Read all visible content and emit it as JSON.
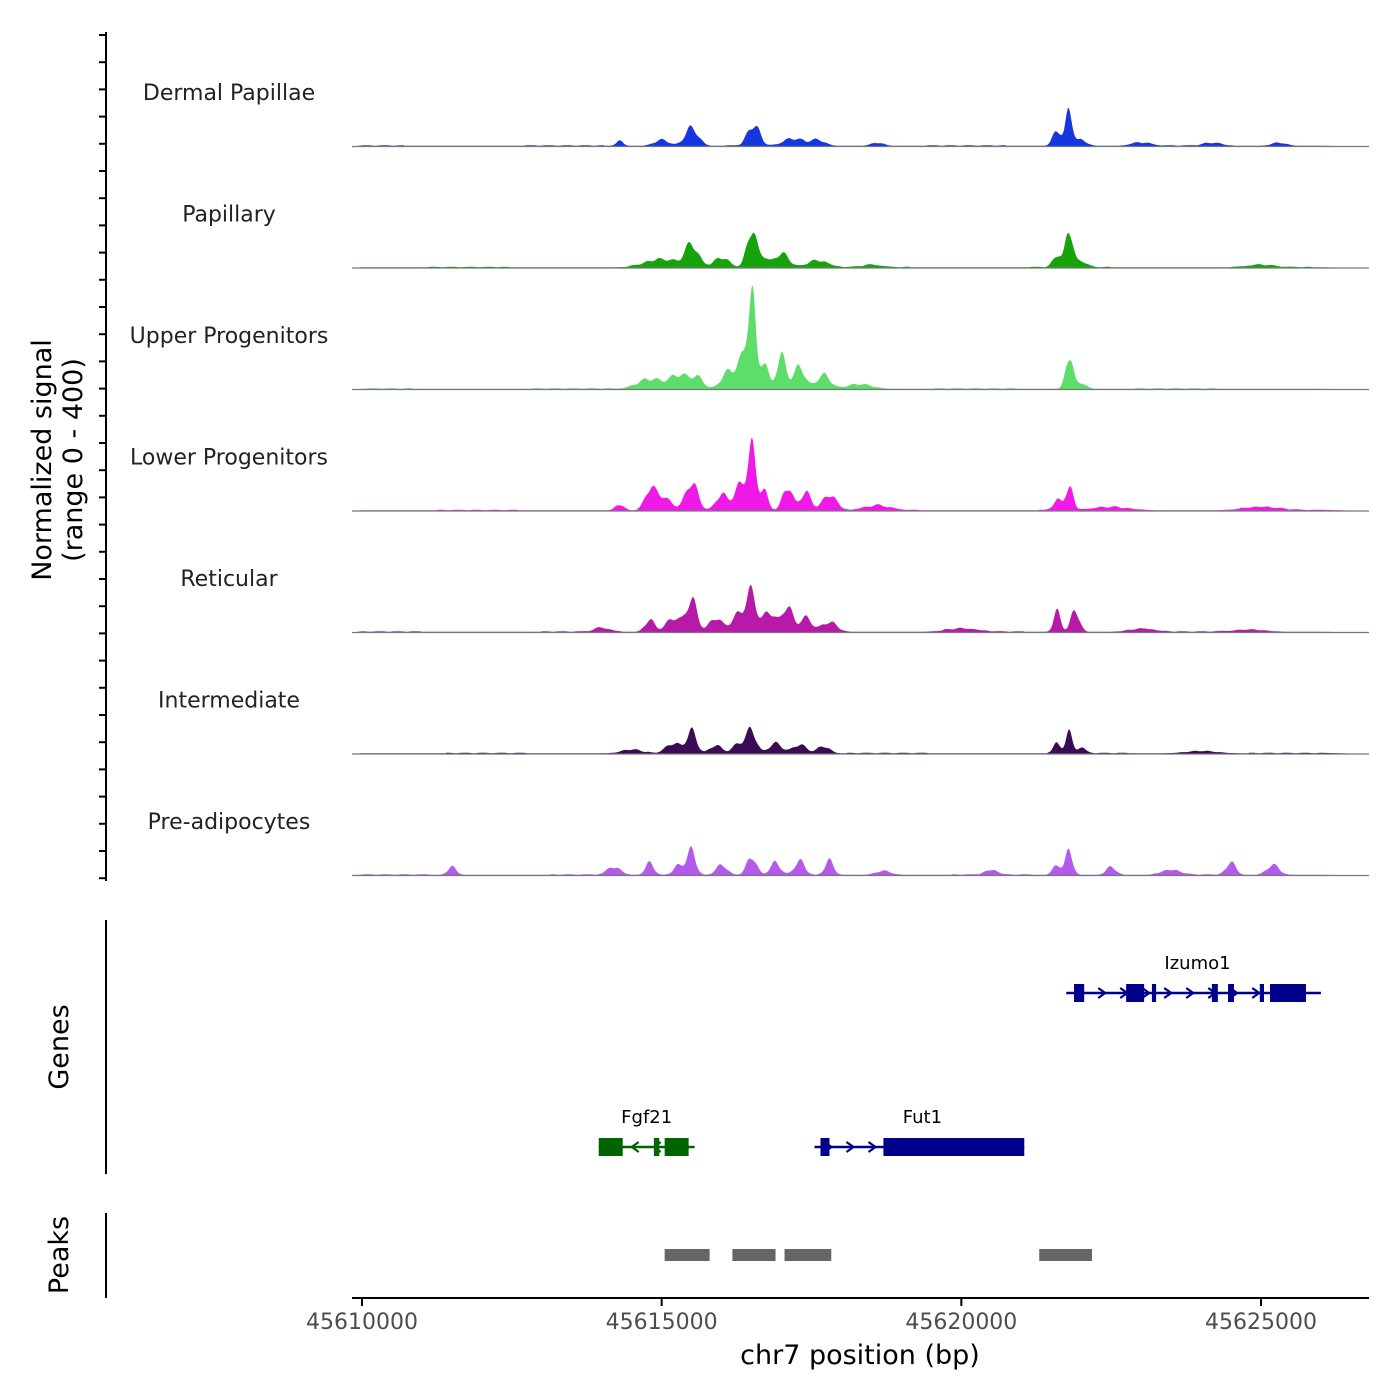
{
  "chart_data": {
    "type": "area",
    "chromosome": "chr7",
    "x_range": [
      45610000,
      45626000
    ],
    "signal_range": [
      0,
      400
    ],
    "xlabel": "chr7 position (bp)",
    "ylabel_line1": "Normalized signal",
    "ylabel_line2": "(range 0 - 400)",
    "x_ticks": [
      {
        "value": 45610000,
        "label": "45610000"
      },
      {
        "value": 45615000,
        "label": "45615000"
      },
      {
        "value": 45620000,
        "label": "45620000"
      },
      {
        "value": 45625000,
        "label": "45625000"
      }
    ],
    "tracks": [
      {
        "name": "Dermal Papillae",
        "color": "#1537e0",
        "peaks": [
          [
            45614300,
            12,
            60
          ],
          [
            45615000,
            15,
            120
          ],
          [
            45615500,
            45,
            110
          ],
          [
            45616500,
            40,
            90
          ],
          [
            45616600,
            22,
            70
          ],
          [
            45617200,
            18,
            160
          ],
          [
            45617600,
            15,
            120
          ],
          [
            45618600,
            8,
            100
          ],
          [
            45621600,
            40,
            70
          ],
          [
            45621800,
            90,
            55
          ],
          [
            45622000,
            15,
            90
          ],
          [
            45623000,
            8,
            150
          ],
          [
            45624200,
            8,
            150
          ],
          [
            45625300,
            8,
            120
          ]
        ]
      },
      {
        "name": "Papillary",
        "color": "#16a30c",
        "peaks": [
          [
            45615000,
            20,
            260
          ],
          [
            45615500,
            55,
            110
          ],
          [
            45616000,
            25,
            120
          ],
          [
            45616500,
            95,
            80
          ],
          [
            45616700,
            25,
            70
          ],
          [
            45617000,
            35,
            120
          ],
          [
            45617600,
            18,
            160
          ],
          [
            45618500,
            6,
            150
          ],
          [
            45621600,
            30,
            70
          ],
          [
            45621800,
            95,
            60
          ],
          [
            45622000,
            15,
            90
          ],
          [
            45625000,
            6,
            200
          ]
        ]
      },
      {
        "name": "Upper Progenitors",
        "color": "#5ddd6a",
        "peaks": [
          [
            45614800,
            25,
            200
          ],
          [
            45615300,
            35,
            160
          ],
          [
            45615600,
            25,
            100
          ],
          [
            45616100,
            40,
            110
          ],
          [
            45616350,
            70,
            100
          ],
          [
            45616500,
            230,
            60
          ],
          [
            45616700,
            70,
            70
          ],
          [
            45617000,
            80,
            80
          ],
          [
            45617300,
            55,
            90
          ],
          [
            45617700,
            35,
            110
          ],
          [
            45618300,
            12,
            200
          ],
          [
            45621800,
            85,
            60
          ],
          [
            45622000,
            15,
            80
          ]
        ]
      },
      {
        "name": "Lower Progenitors",
        "color": "#f01ae8",
        "peaks": [
          [
            45614300,
            15,
            70
          ],
          [
            45614800,
            45,
            80
          ],
          [
            45615000,
            35,
            140
          ],
          [
            45615500,
            70,
            100
          ],
          [
            45616000,
            40,
            90
          ],
          [
            45616300,
            60,
            100
          ],
          [
            45616500,
            150,
            70
          ],
          [
            45616700,
            50,
            70
          ],
          [
            45617100,
            60,
            80
          ],
          [
            45617400,
            45,
            90
          ],
          [
            45617800,
            40,
            110
          ],
          [
            45618600,
            12,
            200
          ],
          [
            45621600,
            25,
            70
          ],
          [
            45621800,
            60,
            60
          ],
          [
            45622500,
            8,
            300
          ],
          [
            45625000,
            8,
            300
          ]
        ]
      },
      {
        "name": "Reticular",
        "color": "#b71aa8",
        "peaks": [
          [
            45614000,
            10,
            120
          ],
          [
            45614800,
            30,
            80
          ],
          [
            45615200,
            35,
            120
          ],
          [
            45615500,
            80,
            90
          ],
          [
            45615900,
            35,
            100
          ],
          [
            45616300,
            45,
            130
          ],
          [
            45616500,
            85,
            80
          ],
          [
            45616800,
            50,
            110
          ],
          [
            45617100,
            65,
            80
          ],
          [
            45617400,
            35,
            100
          ],
          [
            45617800,
            25,
            120
          ],
          [
            45620000,
            8,
            250
          ],
          [
            45621600,
            50,
            60
          ],
          [
            45621900,
            55,
            70
          ],
          [
            45623000,
            8,
            200
          ],
          [
            45624800,
            6,
            250
          ]
        ]
      },
      {
        "name": "Intermediate",
        "color": "#3a0c55",
        "peaks": [
          [
            45614500,
            10,
            160
          ],
          [
            45615200,
            25,
            120
          ],
          [
            45615500,
            55,
            80
          ],
          [
            45615900,
            20,
            90
          ],
          [
            45616300,
            25,
            110
          ],
          [
            45616500,
            55,
            80
          ],
          [
            45616900,
            25,
            110
          ],
          [
            45617300,
            22,
            110
          ],
          [
            45617700,
            18,
            100
          ],
          [
            45621600,
            25,
            60
          ],
          [
            45621800,
            50,
            55
          ],
          [
            45622000,
            12,
            80
          ],
          [
            45624000,
            6,
            250
          ]
        ]
      },
      {
        "name": "Pre-adipocytes",
        "color": "#b35aec",
        "peaks": [
          [
            45611500,
            20,
            70
          ],
          [
            45614200,
            20,
            100
          ],
          [
            45614800,
            30,
            70
          ],
          [
            45615300,
            25,
            90
          ],
          [
            45615500,
            60,
            70
          ],
          [
            45616000,
            25,
            90
          ],
          [
            45616500,
            45,
            80
          ],
          [
            45616900,
            30,
            80
          ],
          [
            45617300,
            35,
            80
          ],
          [
            45617800,
            35,
            70
          ],
          [
            45618700,
            10,
            120
          ],
          [
            45620500,
            12,
            100
          ],
          [
            45621600,
            25,
            70
          ],
          [
            45621800,
            60,
            60
          ],
          [
            45622500,
            20,
            80
          ],
          [
            45623500,
            12,
            150
          ],
          [
            45624500,
            30,
            80
          ],
          [
            45625200,
            25,
            100
          ]
        ]
      }
    ],
    "genes": [
      {
        "name": "Izumo1",
        "color": "#00008b",
        "strand": "+",
        "start": 45621750,
        "end": 45626000,
        "row": 1,
        "exons": [
          [
            45621880,
            45622050
          ],
          [
            45622750,
            45623050
          ],
          [
            45623180,
            45623250
          ],
          [
            45624180,
            45624280
          ],
          [
            45624450,
            45624550
          ],
          [
            45624980,
            45625050
          ],
          [
            45625150,
            45625750
          ]
        ]
      },
      {
        "name": "Fgf21",
        "color": "#006400",
        "strand": "-",
        "start": 45613950,
        "end": 45615550,
        "row": 2,
        "exons": [
          [
            45613950,
            45614350
          ],
          [
            45614870,
            45614960
          ],
          [
            45615050,
            45615450
          ]
        ]
      },
      {
        "name": "Fut1",
        "color": "#00008b",
        "strand": "+",
        "start": 45617550,
        "end": 45621050,
        "row": 2,
        "exons": [
          [
            45617650,
            45617800
          ],
          [
            45618700,
            45621050
          ]
        ]
      }
    ],
    "peaks": [
      [
        45615050,
        45615800
      ],
      [
        45616180,
        45616900
      ],
      [
        45617050,
        45617830
      ],
      [
        45621300,
        45622180
      ]
    ]
  }
}
